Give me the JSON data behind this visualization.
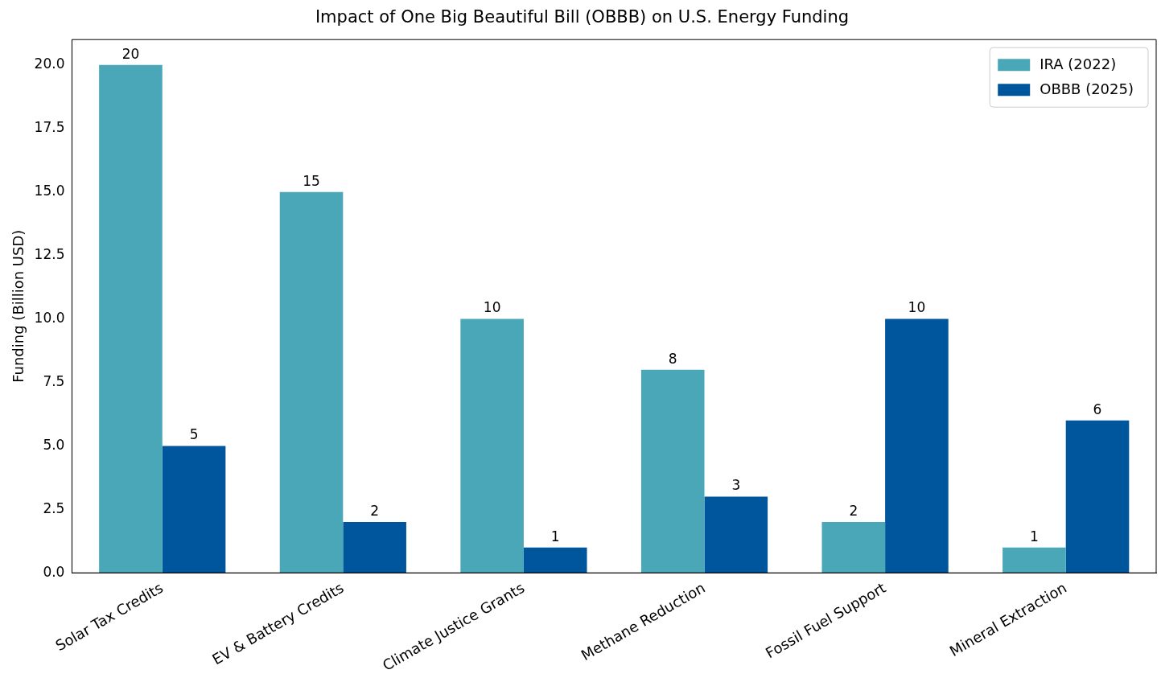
{
  "chart_data": {
    "type": "bar",
    "title": "Impact of One Big Beautiful Bill (OBBB) on U.S. Energy Funding",
    "ylabel": "Funding (Billion USD)",
    "categories": [
      "Solar Tax Credits",
      "EV & Battery Credits",
      "Climate Justice Grants",
      "Methane Reduction",
      "Fossil Fuel Support",
      "Mineral Extraction"
    ],
    "series": [
      {
        "name": "IRA (2022)",
        "color": "#4aa7b8",
        "values": [
          20,
          15,
          10,
          8,
          2,
          1
        ]
      },
      {
        "name": "OBBB (2025)",
        "color": "#00569d",
        "values": [
          5,
          2,
          1,
          3,
          10,
          6
        ]
      }
    ],
    "ylim": [
      0,
      21
    ],
    "yticks": [
      {
        "value": 0,
        "label": "0.0"
      },
      {
        "value": 2.5,
        "label": "2.5"
      },
      {
        "value": 5,
        "label": "5.0"
      },
      {
        "value": 7.5,
        "label": "7.5"
      },
      {
        "value": 10,
        "label": "10.0"
      },
      {
        "value": 12.5,
        "label": "12.5"
      },
      {
        "value": 15,
        "label": "15.0"
      },
      {
        "value": 17.5,
        "label": "17.5"
      },
      {
        "value": 20,
        "label": "20.0"
      }
    ],
    "grid": false,
    "legend": "top right",
    "data_labels": true
  }
}
